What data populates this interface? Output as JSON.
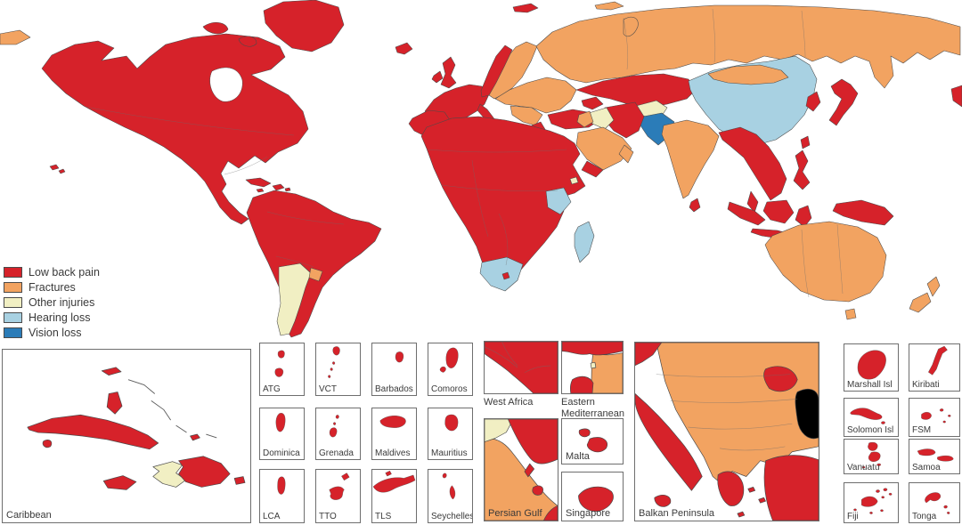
{
  "figure": {
    "background": "#ffffff",
    "border_color": "#6e6e6e",
    "outline_color": "#4a4a4a",
    "text_color": "#3a3a3a"
  },
  "legend": {
    "position": "left",
    "items": [
      {
        "label": "Low back pain",
        "category": "low_back_pain",
        "color": "#d6222a"
      },
      {
        "label": "Fractures",
        "category": "fractures",
        "color": "#f2a361"
      },
      {
        "label": "Other injuries",
        "category": "other_injuries",
        "color": "#f1efc3"
      },
      {
        "label": "Hearing loss",
        "category": "hearing_loss",
        "color": "#a8d1e2"
      },
      {
        "label": "Vision loss",
        "category": "vision_loss",
        "color": "#2b7cb8"
      }
    ]
  },
  "insets": {
    "caribbean": {
      "label": "Caribbean"
    },
    "small_islands": [
      "ATG",
      "VCT",
      "Barbados",
      "Comoros",
      "Dominica",
      "Grenada",
      "Maldives",
      "Mauritius",
      "LCA",
      "TTO",
      "TLS",
      "Seychelles"
    ],
    "west_africa": {
      "label": "West Africa"
    },
    "eastern_mediterranean": {
      "label": "Eastern Mediterranean"
    },
    "persian_gulf": {
      "label": "Persian Gulf"
    },
    "malta": {
      "label": "Malta"
    },
    "singapore": {
      "label": "Singapore"
    },
    "balkan": {
      "label": "Balkan Peninsula"
    },
    "pacific": [
      "Marshall Isl",
      "Kiribati",
      "Solomon Isl",
      "FSM",
      "Vanuatu",
      "Samoa",
      "Fiji",
      "Tonga"
    ]
  },
  "chart_data": {
    "type": "choropleth-map",
    "title": "",
    "legend_position": "left",
    "categories": [
      "Low back pain",
      "Fractures",
      "Other injuries",
      "Hearing loss",
      "Vision loss"
    ],
    "regions": {
      "greenland": "low_back_pain",
      "north-america": "low_back_pain",
      "arctic-islands-1": "low_back_pain",
      "arctic-islands-2": "low_back_pain",
      "hawaii": "low_back_pain",
      "cuba-map": "low_back_pain",
      "hispaniola-map": "low_back_pain",
      "jamaica-map": "low_back_pain",
      "puerto-rico-map": "low_back_pain",
      "south-america": "low_back_pain",
      "argentina": "other_injuries",
      "uruguay": "fractures",
      "iceland": "low_back_pain",
      "uk": "low_back_pain",
      "ireland": "low_back_pain",
      "iberia": "low_back_pain",
      "france-central-europe": "low_back_pain",
      "italy": "low_back_pain",
      "sicily": "low_back_pain",
      "norway": "low_back_pain",
      "sweden-finland": "fractures",
      "svalbard": "low_back_pain",
      "franz-josef": "fractures",
      "novaya-zemlya": "fractures",
      "russia": "fractures",
      "eastern-europe": "fractures",
      "balkans": "fractures",
      "greece": "low_back_pain",
      "turkey": "low_back_pain",
      "caucasus": "low_back_pain",
      "kazakhstan-central-asia": "low_back_pain",
      "china": "hearing_loss",
      "mongolia": "fractures",
      "afghanistan": "other_injuries",
      "pakistan": "vision_loss",
      "india": "fractures",
      "sri-lanka": "low_back_pain",
      "iran": "low_back_pain",
      "iraq": "other_injuries",
      "levant": "fractures",
      "saudi-arabia": "fractures",
      "yemen": "low_back_pain",
      "oman": "fractures",
      "africa": "low_back_pain",
      "kenya": "hearing_loss",
      "madagascar": "hearing_loss",
      "south-africa": "hearing_loss",
      "lesotho": "low_back_pain",
      "djibouti": "other_injuries",
      "southeast-asia": "low_back_pain",
      "malay-peninsula": "low_back_pain",
      "sumatra": "low_back_pain",
      "borneo": "low_back_pain",
      "java": "low_back_pain",
      "sulawesi": "low_back_pain",
      "philippines": "low_back_pain",
      "taiwan": "low_back_pain",
      "new-guinea": "low_back_pain",
      "korea": "low_back_pain",
      "japan": "low_back_pain",
      "australia": "fractures",
      "tasmania": "fractures",
      "new-zealand-north": "fractures",
      "new-zealand-south": "fractures",
      "left-edge-wrap": "fractures",
      "right-edge-wrap": "low_back_pain"
    }
  }
}
